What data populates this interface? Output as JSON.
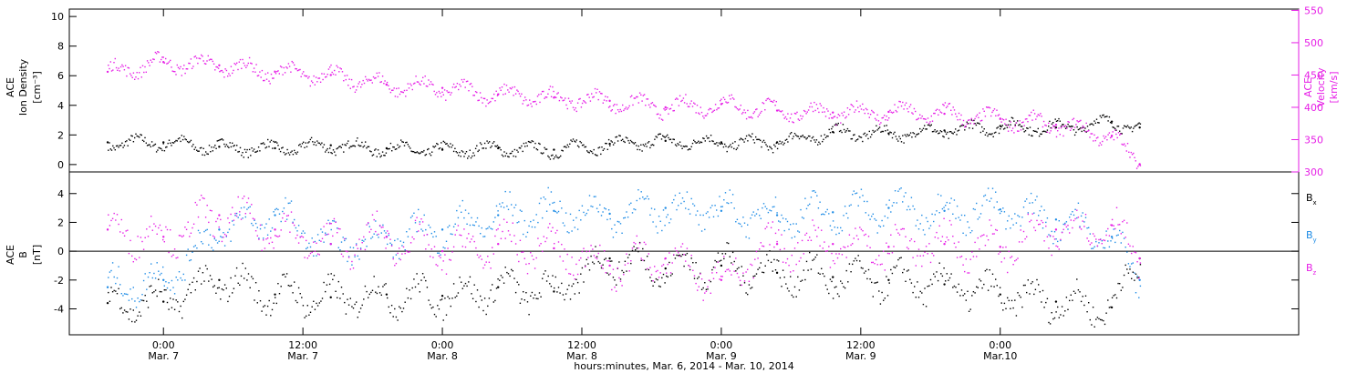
{
  "colors": {
    "black": "#000000",
    "magenta": "#e61ee6",
    "blue": "#1e8ce6"
  },
  "chart_data": [
    {
      "type": "scatter",
      "panel": "top",
      "ylabel": [
        "ACE",
        "Ion Density",
        "[cm⁻³]"
      ],
      "y2label": [
        "ACE",
        "Velocity",
        "[km/s]"
      ],
      "ylim": [
        -0.5,
        10.5
      ],
      "yticks": [
        0,
        2,
        4,
        6,
        8,
        10
      ],
      "y2lim": [
        300,
        552
      ],
      "y2ticks": [
        300,
        350,
        400,
        450,
        500,
        550
      ],
      "series": [
        {
          "axis": "left",
          "color": "black",
          "x": [
            -0.2,
            0.0,
            0.2,
            0.4,
            0.6,
            0.8,
            1.0,
            1.2,
            1.4,
            1.6,
            1.8,
            2.0,
            2.2,
            2.4,
            2.6,
            2.8,
            3.0,
            3.2,
            3.4,
            3.5
          ],
          "y": [
            1.5,
            1.5,
            1.2,
            1.1,
            1.3,
            1.1,
            1.0,
            1.1,
            1.0,
            1.4,
            1.6,
            1.5,
            1.5,
            2.2,
            2.1,
            2.3,
            2.6,
            2.5,
            2.9,
            2.5
          ]
        },
        {
          "axis": "right",
          "color": "magenta",
          "x": [
            -0.2,
            0.0,
            0.2,
            0.4,
            0.6,
            0.8,
            1.0,
            1.2,
            1.4,
            1.6,
            1.8,
            2.0,
            2.2,
            2.4,
            2.6,
            2.8,
            3.0,
            3.2,
            3.4,
            3.5
          ],
          "y": [
            455,
            470,
            465,
            455,
            450,
            435,
            430,
            420,
            415,
            410,
            400,
            405,
            395,
            392,
            393,
            390,
            382,
            373,
            356,
            312
          ]
        }
      ]
    },
    {
      "type": "scatter",
      "panel": "bottom",
      "ylabel": [
        "ACE",
        "B",
        "[nT]"
      ],
      "ylim": [
        -5.8,
        5.5
      ],
      "yticks": [
        -4,
        -2,
        0,
        2,
        4
      ],
      "zero_line": true,
      "xlabel": "hours:minutes, Mar.  6, 2014 - Mar. 10, 2014",
      "xlim": [
        -0.3375,
        4.07
      ],
      "xticks": [
        {
          "x": 0.0,
          "time": "0:00",
          "date": "Mar. 7"
        },
        {
          "x": 0.5,
          "time": "12:00",
          "date": "Mar. 7"
        },
        {
          "x": 1.0,
          "time": "0:00",
          "date": "Mar. 8"
        },
        {
          "x": 1.5,
          "time": "12:00",
          "date": "Mar. 8"
        },
        {
          "x": 2.0,
          "time": "0:00",
          "date": "Mar. 9"
        },
        {
          "x": 2.5,
          "time": "12:00",
          "date": "Mar. 9"
        },
        {
          "x": 3.0,
          "time": "0:00",
          "date": "Mar.10"
        }
      ],
      "legend": [
        {
          "base": "B",
          "sub": "x",
          "color": "black"
        },
        {
          "base": "B",
          "sub": "y",
          "color": "blue"
        },
        {
          "base": "B",
          "sub": "z",
          "color": "magenta"
        }
      ],
      "series": [
        {
          "name": "Bx",
          "color": "black",
          "x": [
            -0.2,
            0.0,
            0.2,
            0.4,
            0.6,
            0.8,
            1.0,
            1.2,
            1.4,
            1.6,
            1.8,
            2.0,
            2.2,
            2.4,
            2.6,
            2.8,
            3.0,
            3.2,
            3.4,
            3.5
          ],
          "y": [
            -3.6,
            -3.5,
            -2.0,
            -3.0,
            -3.2,
            -3.0,
            -3.1,
            -2.5,
            -2.8,
            -0.5,
            -1.2,
            -1.0,
            -1.5,
            -1.8,
            -2.0,
            -2.3,
            -3.0,
            -3.5,
            -3.9,
            -0.5
          ]
        },
        {
          "name": "By",
          "color": "blue",
          "x": [
            -0.2,
            0.0,
            0.2,
            0.4,
            0.6,
            0.8,
            1.0,
            1.2,
            1.4,
            1.6,
            1.8,
            2.0,
            2.2,
            2.4,
            2.6,
            2.8,
            3.0,
            3.2,
            3.4,
            3.5
          ],
          "y": [
            -2.5,
            -2.0,
            1.5,
            2.5,
            0.5,
            1.0,
            1.5,
            2.5,
            2.8,
            2.6,
            3.0,
            2.8,
            2.5,
            2.7,
            3.0,
            2.8,
            2.9,
            2.2,
            1.0,
            -2.0
          ]
        },
        {
          "name": "Bz",
          "color": "magenta",
          "x": [
            -0.2,
            0.0,
            0.2,
            0.4,
            0.6,
            0.8,
            1.0,
            1.2,
            1.4,
            1.6,
            1.8,
            2.0,
            2.2,
            2.4,
            2.6,
            2.8,
            3.0,
            3.2,
            3.4,
            3.5
          ],
          "y": [
            1.5,
            1.0,
            2.5,
            1.5,
            0.5,
            1.0,
            0.0,
            0.5,
            0.2,
            -1.0,
            -0.5,
            -2.0,
            0.5,
            0.5,
            0.3,
            0.5,
            0.3,
            1.5,
            1.8,
            -0.5
          ]
        }
      ]
    }
  ]
}
